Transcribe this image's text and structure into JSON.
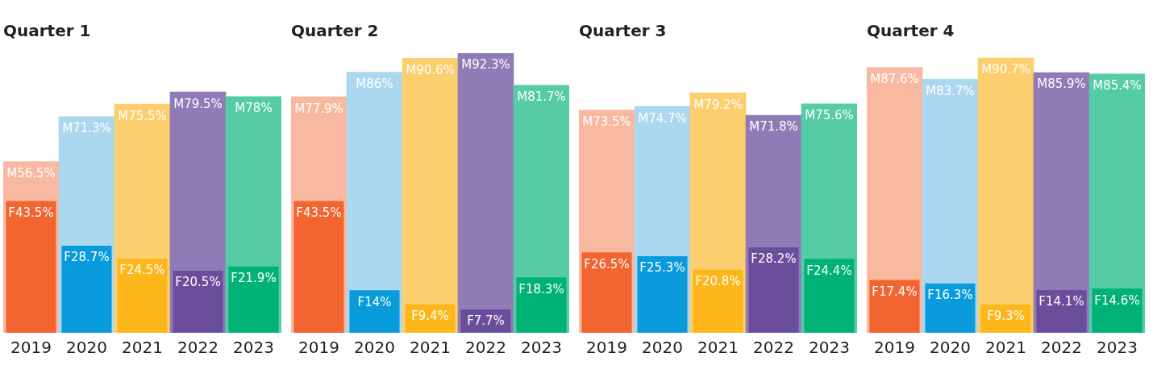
{
  "chart_data": [
    {
      "type": "bar",
      "title": "Quarter 1",
      "categories": [
        "2019",
        "2020",
        "2021",
        "2022",
        "2023"
      ],
      "grid": false,
      "legend": false,
      "series": [
        {
          "colors": [
            "#f26430",
            "#0a9bdc",
            "#fdb71a",
            "#6a4e9c",
            "#00b276"
          ],
          "values": [
            43.5,
            28.7,
            24.5,
            20.5,
            21.9
          ],
          "value_labels": [
            "F43.5%",
            "F28.7%",
            "F24.5%",
            "F20.5%",
            "F21.9%"
          ]
        },
        {
          "colors": [
            "#f9b8a0",
            "#acd8ef",
            "#fdce6e",
            "#8f7cb6",
            "#55cca6"
          ],
          "values": [
            56.5,
            71.3,
            75.5,
            79.5,
            78
          ],
          "value_labels": [
            "M56.5%",
            "M71.3%",
            "M75.5%",
            "M79.5%",
            "M78%"
          ]
        }
      ]
    },
    {
      "type": "bar",
      "title": "Quarter 2",
      "categories": [
        "2019",
        "2020",
        "2021",
        "2022",
        "2023"
      ],
      "grid": false,
      "legend": false,
      "series": [
        {
          "colors": [
            "#f26430",
            "#0a9bdc",
            "#fdb71a",
            "#6a4e9c",
            "#00b276"
          ],
          "values": [
            43.5,
            14,
            9.4,
            7.7,
            18.3
          ],
          "value_labels": [
            "F43.5%",
            "F14%",
            "F9.4%",
            "F7.7%",
            "F18.3%"
          ]
        },
        {
          "colors": [
            "#f9b8a0",
            "#acd8ef",
            "#fdce6e",
            "#8f7cb6",
            "#55cca6"
          ],
          "values": [
            77.9,
            86,
            90.6,
            92.3,
            81.7
          ],
          "value_labels": [
            "M77.9%",
            "M86%",
            "M90.6%",
            "M92.3%",
            "M81.7%"
          ]
        }
      ]
    },
    {
      "type": "bar",
      "title": "Quarter 3",
      "categories": [
        "2019",
        "2020",
        "2021",
        "2022",
        "2023"
      ],
      "grid": false,
      "legend": false,
      "series": [
        {
          "colors": [
            "#f26430",
            "#0a9bdc",
            "#fdb71a",
            "#6a4e9c",
            "#00b276"
          ],
          "values": [
            26.5,
            25.3,
            20.8,
            28.2,
            24.4
          ],
          "value_labels": [
            "F26.5%",
            "F25.3%",
            "F20.8%",
            "F28.2%",
            "F24.4%"
          ]
        },
        {
          "colors": [
            "#f9b8a0",
            "#acd8ef",
            "#fdce6e",
            "#8f7cb6",
            "#55cca6"
          ],
          "values": [
            73.5,
            74.7,
            79.2,
            71.8,
            75.6
          ],
          "value_labels": [
            "M73.5%",
            "M74.7%",
            "M79.2%",
            "M71.8%",
            "M75.6%"
          ]
        }
      ]
    },
    {
      "type": "bar",
      "title": "Quarter 4",
      "categories": [
        "2019",
        "2020",
        "2021",
        "2022",
        "2023"
      ],
      "grid": false,
      "legend": false,
      "series": [
        {
          "colors": [
            "#f26430",
            "#0a9bdc",
            "#fdb71a",
            "#6a4e9c",
            "#00b276"
          ],
          "values": [
            17.4,
            16.3,
            9.3,
            14.1,
            14.6
          ],
          "value_labels": [
            "F17.4%",
            "F16.3%",
            "F9.3%",
            "F14.1%",
            "F14.6%"
          ]
        },
        {
          "colors": [
            "#f9b8a0",
            "#acd8ef",
            "#fdce6e",
            "#8f7cb6",
            "#55cca6"
          ],
          "values": [
            87.6,
            83.7,
            90.7,
            85.9,
            85.4
          ],
          "value_labels": [
            "M87.6%",
            "M83.7%",
            "M90.7%",
            "M85.9%",
            "M85.4%"
          ]
        }
      ]
    }
  ]
}
